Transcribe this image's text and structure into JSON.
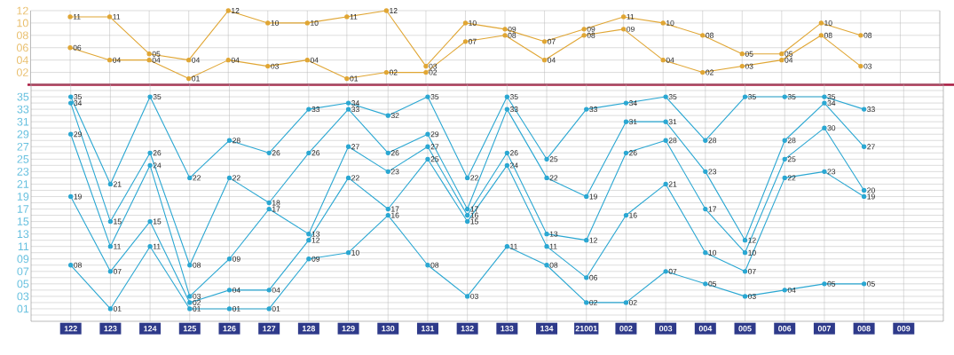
{
  "chart_data": [
    {
      "type": "line",
      "categories": [
        "122",
        "123",
        "124",
        "125",
        "126",
        "127",
        "128",
        "129",
        "130",
        "131",
        "132",
        "133",
        "134",
        "21001",
        "002",
        "003",
        "004",
        "005",
        "006",
        "007",
        "008",
        "009"
      ],
      "series": [
        {
          "color": "#e0a634",
          "values": [
            11,
            11,
            5,
            4,
            12,
            10,
            10,
            11,
            12,
            3,
            10,
            9,
            7,
            9,
            11,
            10,
            8,
            5,
            5,
            10,
            8,
            null
          ],
          "value_labels": [
            "11",
            "11",
            "05",
            "04",
            "12",
            "10",
            "10",
            "11",
            "12",
            "03",
            "10",
            "09",
            "07",
            "09",
            "11",
            "10",
            "08",
            "05",
            "05",
            "10",
            "08",
            null
          ]
        },
        {
          "color": "#e0a634",
          "values": [
            6,
            4,
            4,
            1,
            4,
            3,
            4,
            1,
            2,
            2,
            7,
            8,
            4,
            8,
            9,
            4,
            2,
            3,
            4,
            8,
            3,
            null
          ],
          "value_labels": [
            "06",
            "04",
            "04",
            "01",
            "04",
            "03",
            "04",
            "01",
            "02",
            "02",
            "07",
            "08",
            "04",
            "08",
            "09",
            "04",
            "02",
            "03",
            "04",
            "08",
            "03",
            null
          ]
        }
      ],
      "ylim": [
        0,
        12
      ],
      "yticks": [
        {
          "value": 2,
          "label": "02"
        },
        {
          "value": 4,
          "label": "04"
        },
        {
          "value": 6,
          "label": "06"
        },
        {
          "value": 8,
          "label": "08"
        },
        10,
        12
      ],
      "grid": true,
      "marker": "circle",
      "tick_labels": "y"
    },
    {
      "type": "line",
      "categories": [
        "122",
        "123",
        "124",
        "125",
        "126",
        "127",
        "128",
        "129",
        "130",
        "131",
        "132",
        "133",
        "134",
        "21001",
        "002",
        "003",
        "004",
        "005",
        "006",
        "007",
        "008",
        "009"
      ],
      "series": [
        {
          "color": "#2aa7d2",
          "values": [
            8,
            1,
            11,
            1,
            1,
            1,
            9,
            10,
            16,
            8,
            3,
            11,
            8,
            2,
            2,
            7,
            5,
            3,
            4,
            5,
            5,
            null
          ],
          "value_labels": [
            "08",
            "01",
            "11",
            "01",
            "01",
            "01",
            "09",
            "10",
            "16",
            "08",
            "03",
            "11",
            "08",
            "02",
            "02",
            "07",
            "05",
            "03",
            "04",
            "05",
            "05",
            null
          ]
        },
        {
          "color": "#2aa7d2",
          "values": [
            19,
            7,
            15,
            2,
            4,
            4,
            12,
            22,
            17,
            25,
            15,
            24,
            11,
            6,
            16,
            21,
            10,
            7,
            22,
            23,
            19,
            null
          ],
          "value_labels": [
            "19",
            "07",
            "15",
            "02",
            "04",
            "04",
            "12",
            "22",
            "17",
            "25",
            "15",
            "24",
            "11",
            "06",
            "16",
            "21",
            "10",
            "07",
            "22",
            "23",
            "19",
            null
          ]
        },
        {
          "color": "#2aa7d2",
          "values": [
            29,
            11,
            24,
            3,
            9,
            17,
            13,
            27,
            23,
            27,
            16,
            26,
            13,
            12,
            26,
            28,
            17,
            10,
            25,
            30,
            20,
            null
          ],
          "value_labels": [
            "29",
            "11",
            "24",
            "03",
            "09",
            "17",
            "13",
            "27",
            "23",
            "27",
            "16",
            "26",
            "13",
            "12",
            "26",
            "28",
            "17",
            "10",
            "25",
            "30",
            "20",
            null
          ]
        },
        {
          "color": "#2aa7d2",
          "values": [
            34,
            15,
            26,
            8,
            22,
            18,
            26,
            33,
            26,
            29,
            17,
            33,
            22,
            19,
            31,
            31,
            23,
            12,
            28,
            34,
            27,
            null
          ],
          "value_labels": [
            "34",
            "15",
            "26",
            "08",
            "22",
            "18",
            "26",
            "33",
            "26",
            "29",
            "17",
            "33",
            "22",
            "19",
            "31",
            "31",
            "23",
            "12",
            "28",
            "34",
            "27",
            null
          ]
        },
        {
          "color": "#2aa7d2",
          "values": [
            35,
            21,
            35,
            22,
            28,
            26,
            33,
            34,
            32,
            35,
            22,
            35,
            25,
            33,
            34,
            35,
            28,
            35,
            35,
            35,
            33,
            null
          ],
          "value_labels": [
            "35",
            "21",
            "35",
            "22",
            "28",
            "26",
            "33",
            "34",
            "32",
            "35",
            "22",
            "35",
            "25",
            "33",
            "34",
            "35",
            "28",
            "35",
            "35",
            "35",
            "33",
            null
          ]
        }
      ],
      "ylim": [
        -1,
        37
      ],
      "yticks": [
        {
          "value": 0,
          "label": null
        },
        {
          "value": 1,
          "label": "01"
        },
        {
          "value": 2,
          "label": null
        },
        {
          "value": 3,
          "label": "03"
        },
        {
          "value": 4,
          "label": null
        },
        {
          "value": 5,
          "label": "05"
        },
        {
          "value": 6,
          "label": null
        },
        {
          "value": 7,
          "label": "07"
        },
        {
          "value": 8,
          "label": null
        },
        {
          "value": 9,
          "label": "09"
        },
        {
          "value": 10,
          "label": null
        },
        11,
        {
          "value": 12,
          "label": null
        },
        13,
        {
          "value": 14,
          "label": null
        },
        15,
        {
          "value": 16,
          "label": null
        },
        17,
        {
          "value": 18,
          "label": null
        },
        19,
        {
          "value": 20,
          "label": null
        },
        21,
        {
          "value": 22,
          "label": null
        },
        23,
        {
          "value": 24,
          "label": null
        },
        25,
        {
          "value": 26,
          "label": null
        },
        27,
        {
          "value": 28,
          "label": null
        },
        29,
        {
          "value": 30,
          "label": null
        },
        31,
        {
          "value": 32,
          "label": null
        },
        33,
        {
          "value": 34,
          "label": null
        },
        35,
        {
          "value": 36,
          "label": null
        }
      ],
      "grid": true,
      "marker": "circle"
    }
  ]
}
